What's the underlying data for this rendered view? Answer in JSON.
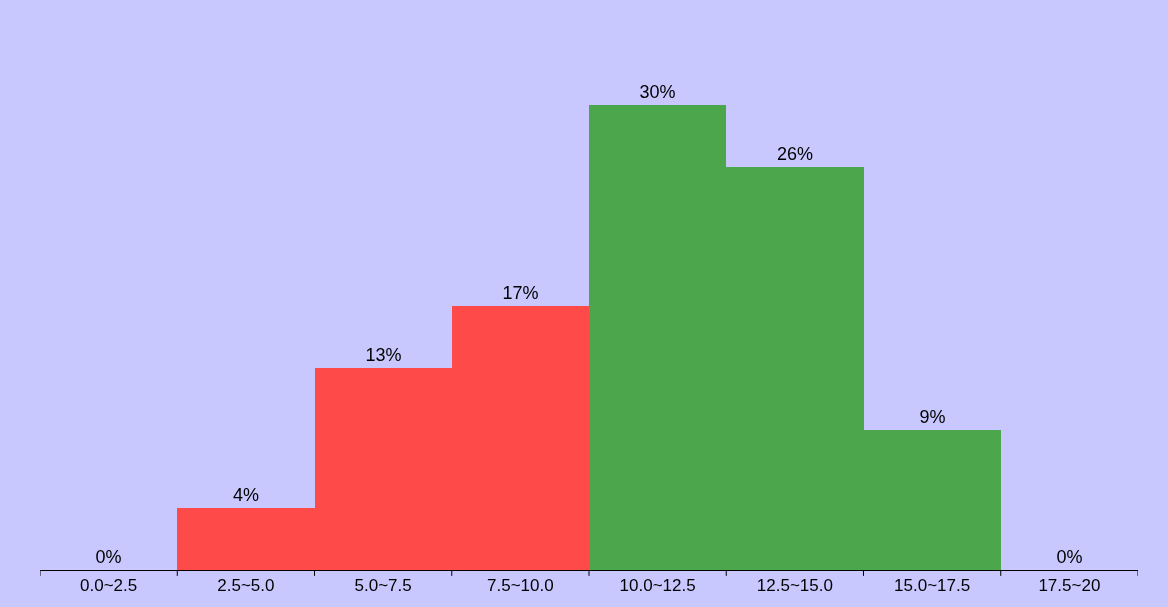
{
  "chart_data": {
    "type": "bar",
    "categories": [
      "0.0~2.5",
      "2.5~5.0",
      "5.0~7.5",
      "7.5~10.0",
      "10.0~12.5",
      "12.5~15.0",
      "15.0~17.5",
      "17.5~20"
    ],
    "values": [
      0,
      4,
      13,
      17,
      30,
      26,
      9,
      0
    ],
    "value_labels": [
      "0%",
      "4%",
      "13%",
      "17%",
      "30%",
      "26%",
      "9%",
      "0%"
    ],
    "colors": [
      "#ff4a4a",
      "#ff4a4a",
      "#ff4a4a",
      "#ff4a4a",
      "#4ca64c",
      "#4ca64c",
      "#4ca64c",
      "#4ca64c"
    ]
  }
}
